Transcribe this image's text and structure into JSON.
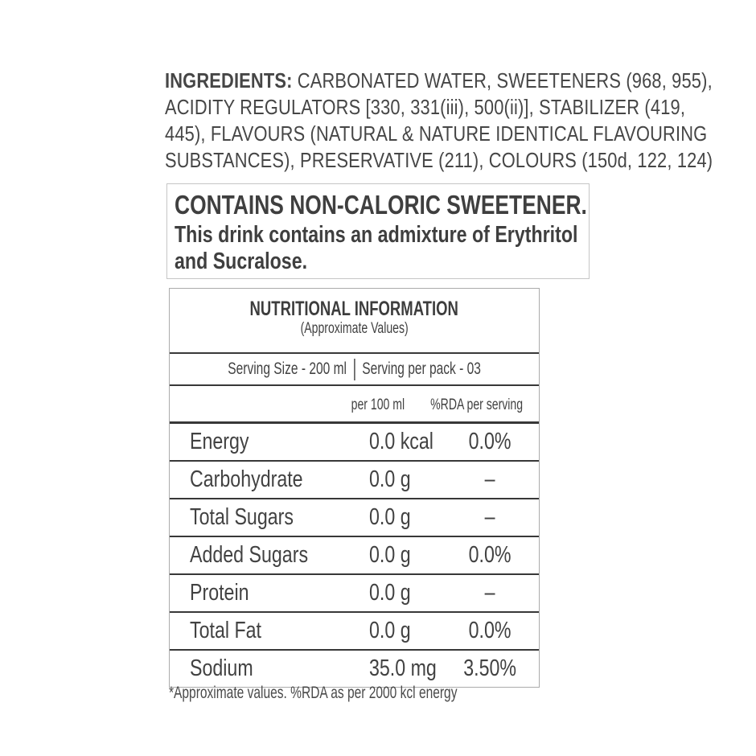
{
  "colors": {
    "text": "#464646",
    "heading_text": "#3d3d3d",
    "table_line": "#383838",
    "table_outer_border": "#ababab",
    "notice_border": "#c6c6c6",
    "background": "#ffffff"
  },
  "ingredients": {
    "label": "INGREDIENTS:",
    "line1_rest": " CARBONATED WATER, SWEETENERS (968, 955),",
    "lines": [
      "ACIDITY REGULATORS [330, 331(iii), 500(ii)], STABILIZER (419,",
      "445), FLAVOURS (NATURAL & NATURE IDENTICAL FLAVOURING",
      "SUBSTANCES), PRESERVATIVE (211), COLOURS (150d, 122, 124)"
    ]
  },
  "notice": {
    "heading": "CONTAINS NON-CALORIC SWEETENER.",
    "body_lines": [
      "This drink contains an admixture of Erythritol",
      "and Sucralose."
    ]
  },
  "table": {
    "title": "NUTRITIONAL INFORMATION",
    "subtitle": "(Approximate Values)",
    "serving_size": "Serving Size - 200 ml",
    "serving_per_pack": "Serving per pack - 03",
    "columns": [
      "per 100 ml",
      "%RDA per serving"
    ],
    "rows": [
      {
        "nutrient": "Energy",
        "per_100ml": "0.0 kcal",
        "rda": "0.0%"
      },
      {
        "nutrient": "Carbohydrate",
        "per_100ml": "0.0 g",
        "rda": "–"
      },
      {
        "nutrient": "Total Sugars",
        "per_100ml": "0.0 g",
        "rda": "–"
      },
      {
        "nutrient": "Added Sugars",
        "per_100ml": "0.0 g",
        "rda": "0.0%"
      },
      {
        "nutrient": "Protein",
        "per_100ml": "0.0 g",
        "rda": "–"
      },
      {
        "nutrient": "Total Fat",
        "per_100ml": "0.0 g",
        "rda": "0.0%"
      },
      {
        "nutrient": "Sodium",
        "per_100ml": "35.0 mg",
        "rda": "3.50%"
      }
    ],
    "footnote": "*Approximate values. %RDA as per 2000 kcl energy"
  }
}
